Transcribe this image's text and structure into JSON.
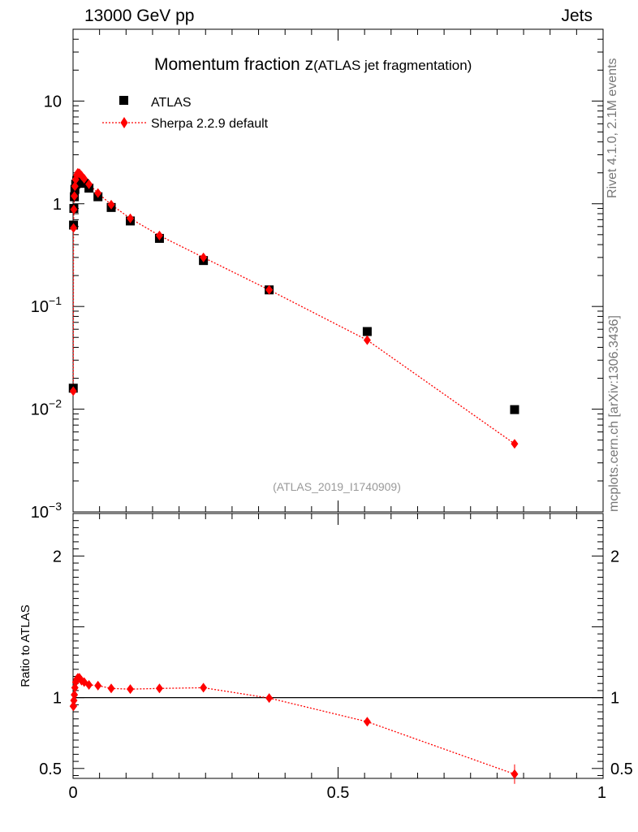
{
  "header": {
    "left": "13000 GeV pp",
    "right": "Jets"
  },
  "side": {
    "rivet": "Rivet 4.1.0,  2.1M events",
    "mcplots": "mcplots.cern.ch [arXiv:1306.3436]"
  },
  "chart_data": {
    "type": "scatter",
    "title_main": "Momentum fraction z",
    "title_sub": "(ATLAS jet fragmentation)",
    "analysis_tag": "(ATLAS_2019_I1740909)",
    "x": [
      0.0004,
      0.0009,
      0.0015,
      0.0025,
      0.0035,
      0.005,
      0.007,
      0.009,
      0.012,
      0.016,
      0.021,
      0.03,
      0.047,
      0.072,
      0.108,
      0.163,
      0.246,
      0.37,
      0.555,
      0.833
    ],
    "xlim": [
      0,
      1
    ],
    "ylim": [
      0.001,
      50
    ],
    "yscale": "log",
    "series": [
      {
        "name": "ATLAS",
        "color": "#000000",
        "marker": "square",
        "values": [
          0.016,
          0.62,
          0.9,
          1.17,
          1.38,
          1.55,
          1.68,
          1.75,
          1.74,
          1.68,
          1.58,
          1.42,
          1.17,
          0.92,
          0.68,
          0.46,
          0.28,
          0.145,
          0.057,
          0.0099
        ]
      },
      {
        "name": "Sherpa 2.2.9 default",
        "color": "#ff0000",
        "marker": "diamond",
        "line": "dotted",
        "values": [
          0.015,
          0.58,
          0.88,
          1.19,
          1.48,
          1.72,
          1.9,
          2.0,
          1.98,
          1.88,
          1.75,
          1.55,
          1.27,
          0.98,
          0.72,
          0.49,
          0.3,
          0.145,
          0.047,
          0.0046
        ]
      }
    ],
    "ratio": {
      "ylabel": "Ratio to ATLAS",
      "ylim": [
        0.43,
        2.3
      ],
      "values": [
        0.94,
        0.94,
        0.98,
        1.02,
        1.07,
        1.11,
        1.13,
        1.14,
        1.14,
        1.12,
        1.11,
        1.09,
        1.085,
        1.065,
        1.06,
        1.065,
        1.07,
        0.997,
        0.83,
        0.46
      ]
    },
    "y_ticks": [
      {
        "v": 10,
        "base": "10",
        "exp": ""
      },
      {
        "v": 1,
        "base": "1",
        "exp": ""
      },
      {
        "v": 0.1,
        "base": "10",
        "exp": "−1"
      },
      {
        "v": 0.01,
        "base": "10",
        "exp": "−2"
      },
      {
        "v": 0.001,
        "base": "10",
        "exp": "−3"
      }
    ],
    "ratio_ticks": [
      "2",
      "1",
      "0.5"
    ],
    "x_ticks": [
      "0",
      "0.5",
      "1"
    ]
  }
}
